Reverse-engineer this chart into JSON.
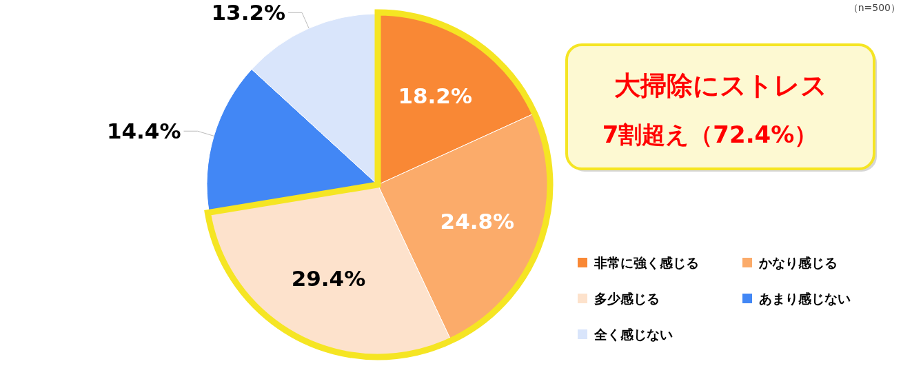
{
  "chart_data": {
    "type": "pie",
    "categories": [
      "非常に強く感じる",
      "かなり感じる",
      "多少感じる",
      "あまり感じない",
      "全く感じない"
    ],
    "values": [
      18.2,
      24.8,
      29.4,
      14.4,
      13.2
    ],
    "colors": [
      "#f98835",
      "#fbab6a",
      "#fde2cc",
      "#4287f5",
      "#d9e5fb"
    ],
    "value_labels": [
      "18.2%",
      "24.8%",
      "29.4%",
      "14.4%",
      "13.2%"
    ],
    "annotations": [
      "（n=500）",
      "大掃除にストレス",
      "7割超え（72.4%）"
    ],
    "legend": "bottom right"
  }
}
